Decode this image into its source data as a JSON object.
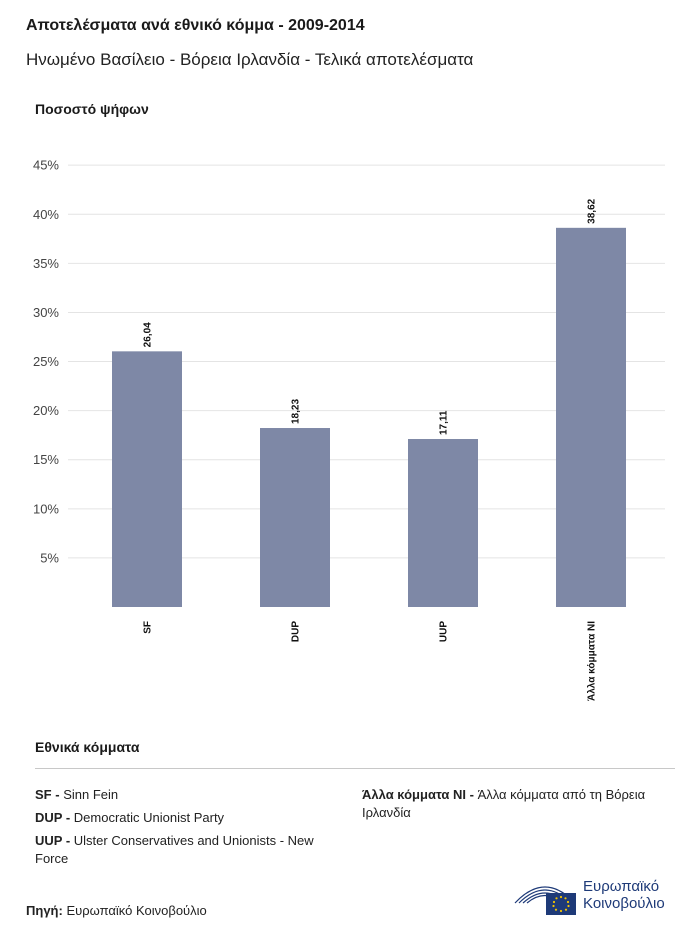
{
  "title": "Αποτελέσματα ανά εθνικό κόμμα - 2009-2014",
  "subtitle": "Ηνωμένο Βασίλειο - Βόρεια Ιρλανδία - Τελικά αποτελέσματα",
  "chart_data": {
    "type": "bar",
    "ylabel": "Ποσοστό ψήφων",
    "xlabel": "",
    "categories": [
      "SF",
      "DUP",
      "UUP",
      "Άλλα  κόμματα  NI"
    ],
    "values": [
      26.04,
      18.23,
      17.11,
      38.62
    ],
    "value_labels": [
      "26,04",
      "18,23",
      "17,11",
      "38,62"
    ],
    "ylim": [
      0,
      45
    ],
    "yticks": [
      5,
      10,
      15,
      20,
      25,
      30,
      35,
      40,
      45
    ],
    "ytick_labels": [
      "5%",
      "10%",
      "15%",
      "20%",
      "25%",
      "30%",
      "35%",
      "40%",
      "45%"
    ],
    "grid": true,
    "bar_color": "#7e88a6"
  },
  "legend": {
    "title": "Εθνικά κόμματα",
    "entries_left": [
      {
        "code": "SF -",
        "name": "Sinn Fein"
      },
      {
        "code": "DUP -",
        "name": "Democratic Unionist Party"
      },
      {
        "code": "UUP -",
        "name": "Ulster Conservatives and Unionists - New Force"
      }
    ],
    "entries_right": [
      {
        "code": "Άλλα κόμματα NI -",
        "name": "Άλλα κόμματα από τη Βόρεια Ιρλανδία"
      }
    ]
  },
  "source": {
    "label": "Πηγή:",
    "value": "Ευρωπαϊκό Κοινοβούλιο"
  },
  "logo": {
    "line1": "Ευρωπαϊκό",
    "line2": "Κοινοβούλιο",
    "icon": "european-parliament-logo-icon",
    "color": "#1e3a78"
  }
}
